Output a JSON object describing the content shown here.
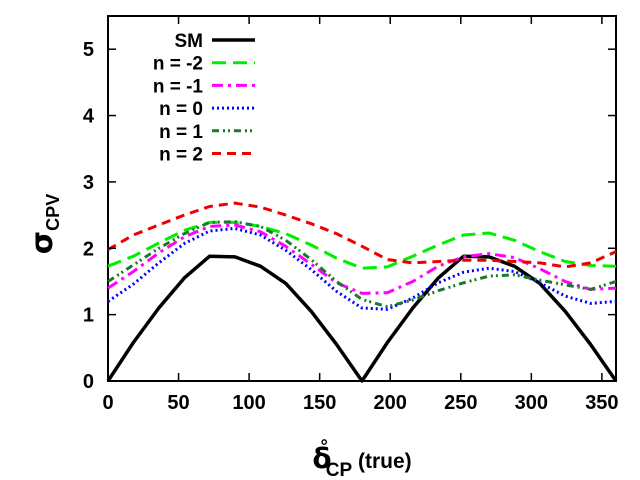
{
  "chart_data": {
    "type": "line",
    "title": "",
    "xlabel": {
      "symbol": "δ",
      "superscript": "°",
      "subscript": "CP",
      "suffix": " (true)"
    },
    "ylabel": {
      "symbol": "σ",
      "subscript": "CPV"
    },
    "xlim": [
      0,
      360
    ],
    "ylim": [
      0,
      5.5
    ],
    "xticks": [
      0,
      50,
      100,
      150,
      200,
      250,
      300,
      350
    ],
    "yticks": [
      0,
      1,
      2,
      3,
      4,
      5
    ],
    "grid": false,
    "legend_position": "top-left",
    "series": [
      {
        "name": "SM",
        "color": "#000000",
        "dash": "solid",
        "x": [
          0,
          18,
          36,
          54,
          72,
          90,
          108,
          126,
          144,
          162,
          180,
          198,
          216,
          234,
          252,
          270,
          288,
          306,
          324,
          342,
          360
        ],
        "y": [
          0.0,
          0.58,
          1.1,
          1.55,
          1.88,
          1.87,
          1.73,
          1.47,
          1.05,
          0.55,
          0.0,
          0.58,
          1.1,
          1.55,
          1.88,
          1.87,
          1.73,
          1.47,
          1.05,
          0.55,
          0.0
        ]
      },
      {
        "name": "n = -2",
        "color": "#00ee00",
        "dash": "longdash",
        "x": [
          0,
          18,
          36,
          54,
          72,
          90,
          108,
          126,
          144,
          162,
          180,
          198,
          216,
          234,
          252,
          270,
          288,
          306,
          324,
          342,
          360
        ],
        "y": [
          1.73,
          1.88,
          2.08,
          2.27,
          2.39,
          2.39,
          2.33,
          2.22,
          2.05,
          1.85,
          1.7,
          1.72,
          1.88,
          2.05,
          2.2,
          2.23,
          2.12,
          1.95,
          1.8,
          1.74,
          1.73
        ]
      },
      {
        "name": "n = -1",
        "color": "#ff00ff",
        "dash": "dashdot",
        "x": [
          0,
          18,
          36,
          54,
          72,
          90,
          108,
          126,
          144,
          162,
          180,
          198,
          216,
          234,
          252,
          270,
          288,
          306,
          324,
          342,
          360
        ],
        "y": [
          1.4,
          1.65,
          1.93,
          2.17,
          2.33,
          2.35,
          2.25,
          2.03,
          1.76,
          1.48,
          1.32,
          1.33,
          1.5,
          1.73,
          1.87,
          1.92,
          1.86,
          1.69,
          1.5,
          1.38,
          1.4
        ]
      },
      {
        "name": "n = 0",
        "color": "#0000ff",
        "dash": "dotted",
        "x": [
          0,
          18,
          36,
          54,
          72,
          90,
          108,
          126,
          144,
          162,
          180,
          198,
          216,
          234,
          252,
          270,
          288,
          306,
          324,
          342,
          360
        ],
        "y": [
          1.2,
          1.46,
          1.78,
          2.07,
          2.26,
          2.3,
          2.2,
          1.97,
          1.68,
          1.35,
          1.1,
          1.08,
          1.25,
          1.48,
          1.64,
          1.7,
          1.65,
          1.48,
          1.28,
          1.17,
          1.2
        ]
      },
      {
        "name": "n = 1",
        "color": "#1a7a2a",
        "dash": "dashdotdot",
        "x": [
          0,
          18,
          36,
          54,
          72,
          90,
          108,
          126,
          144,
          162,
          180,
          198,
          216,
          234,
          252,
          270,
          288,
          306,
          324,
          342,
          360
        ],
        "y": [
          1.5,
          1.75,
          2.0,
          2.22,
          2.39,
          2.4,
          2.33,
          2.12,
          1.83,
          1.5,
          1.23,
          1.12,
          1.22,
          1.36,
          1.48,
          1.58,
          1.6,
          1.52,
          1.45,
          1.38,
          1.5
        ]
      },
      {
        "name": "n = 2",
        "color": "#ee0000",
        "dash": "dashed",
        "x": [
          0,
          18,
          36,
          54,
          72,
          90,
          108,
          126,
          144,
          162,
          180,
          198,
          216,
          234,
          252,
          270,
          288,
          306,
          324,
          342,
          360
        ],
        "y": [
          1.98,
          2.2,
          2.35,
          2.5,
          2.63,
          2.68,
          2.62,
          2.5,
          2.37,
          2.22,
          2.03,
          1.83,
          1.78,
          1.8,
          1.82,
          1.82,
          1.8,
          1.78,
          1.72,
          1.78,
          1.95
        ]
      }
    ]
  }
}
